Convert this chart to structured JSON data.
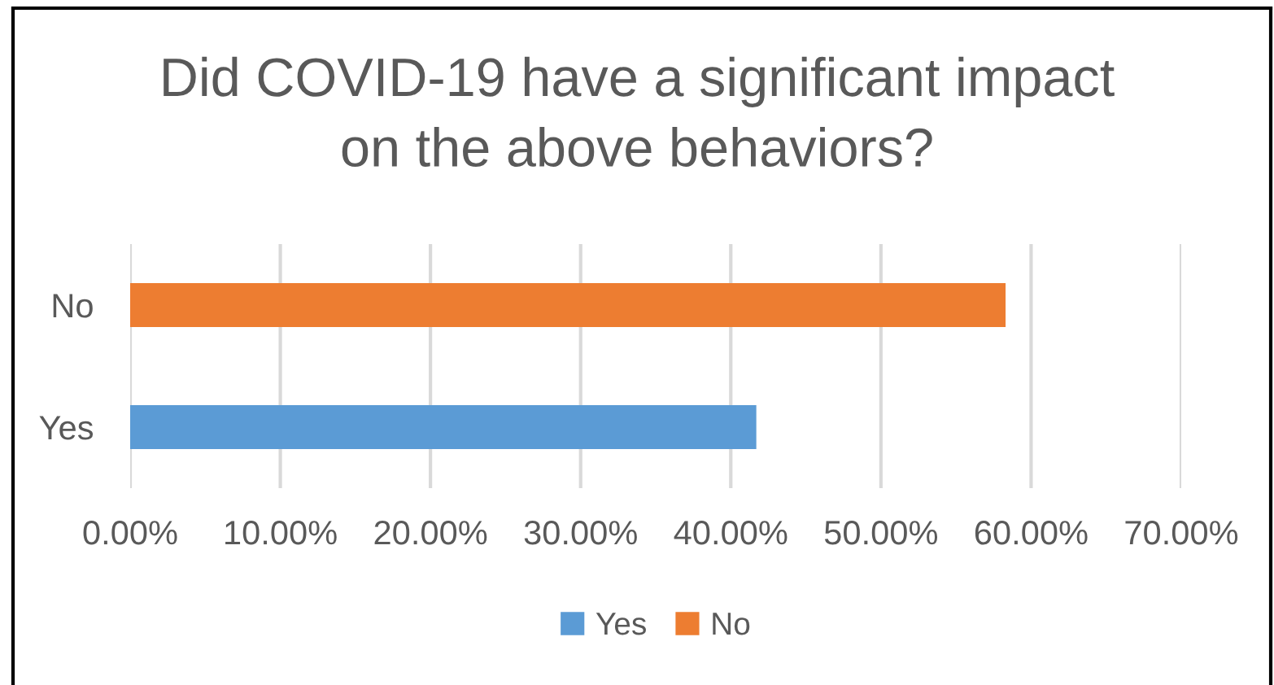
{
  "chart_data": {
    "type": "bar",
    "orientation": "horizontal",
    "title": "Did COVID-19 have a significant impact\non the above behaviors?",
    "categories": [
      "No",
      "Yes"
    ],
    "series": [
      {
        "name": "Yes",
        "color": "#5b9bd5",
        "values": [
          null,
          41.7
        ]
      },
      {
        "name": "No",
        "color": "#ed7d31",
        "values": [
          58.3,
          null
        ]
      }
    ],
    "xlim": [
      0,
      70
    ],
    "xticks": [
      {
        "value": 0,
        "label": "0.00%"
      },
      {
        "value": 10,
        "label": "10.00%"
      },
      {
        "value": 20,
        "label": "20.00%"
      },
      {
        "value": 30,
        "label": "30.00%"
      },
      {
        "value": 40,
        "label": "40.00%"
      },
      {
        "value": 50,
        "label": "50.00%"
      },
      {
        "value": 60,
        "label": "60.00%"
      },
      {
        "value": 70,
        "label": "70.00%"
      }
    ],
    "grid": "x",
    "legend": "bottom"
  }
}
